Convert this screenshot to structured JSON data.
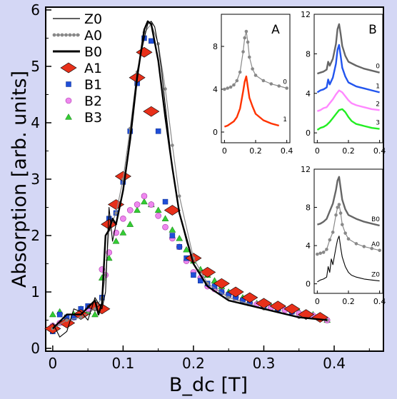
{
  "chart_data": {
    "type": "line",
    "xlabel": "B_dc [T]",
    "ylabel": "Absorption [arb. units]",
    "xlim": [
      -0.01,
      0.47
    ],
    "ylim": [
      -0.05,
      6.05
    ],
    "xticks": [
      "0",
      "0.1",
      "0.2",
      "0.3",
      "0.4"
    ],
    "yticks": [
      "0",
      "1",
      "2",
      "3",
      "4",
      "5",
      "6"
    ],
    "legend_position": "top-left",
    "series": [
      {
        "name": "Z0",
        "style": "thin-line",
        "color": "#000000",
        "x": [
          0.0,
          0.01,
          0.02,
          0.03,
          0.04,
          0.05,
          0.06,
          0.065,
          0.07,
          0.075,
          0.08,
          0.085,
          0.09,
          0.1,
          0.11,
          0.12,
          0.13,
          0.135,
          0.14,
          0.145,
          0.15,
          0.155,
          0.16,
          0.17,
          0.18,
          0.19,
          0.2,
          0.22,
          0.25,
          0.3,
          0.35,
          0.39
        ],
        "y": [
          0.45,
          0.2,
          0.3,
          0.7,
          0.65,
          0.5,
          0.9,
          0.8,
          0.7,
          1.0,
          2.5,
          1.9,
          2.2,
          2.8,
          3.8,
          4.9,
          5.5,
          5.75,
          5.8,
          5.7,
          5.35,
          4.9,
          4.3,
          3.2,
          2.4,
          1.9,
          1.5,
          1.1,
          0.85,
          0.7,
          0.55,
          0.5
        ]
      },
      {
        "name": "A0",
        "style": "dotted-line",
        "color": "#888888",
        "x": [
          0.0,
          0.02,
          0.04,
          0.06,
          0.07,
          0.075,
          0.08,
          0.09,
          0.1,
          0.11,
          0.12,
          0.13,
          0.14,
          0.15,
          0.16,
          0.17,
          0.18,
          0.2,
          0.22,
          0.25,
          0.3,
          0.35,
          0.39
        ],
        "y": [
          0.35,
          0.5,
          0.55,
          0.7,
          0.9,
          1.3,
          2.1,
          2.4,
          3.0,
          3.9,
          4.9,
          5.6,
          5.75,
          5.4,
          4.6,
          3.6,
          2.7,
          1.6,
          1.15,
          0.9,
          0.7,
          0.55,
          0.5
        ]
      },
      {
        "name": "B0",
        "style": "thick-line",
        "color": "#000000",
        "x": [
          0.0,
          0.02,
          0.04,
          0.06,
          0.065,
          0.07,
          0.075,
          0.08,
          0.085,
          0.09,
          0.1,
          0.11,
          0.12,
          0.13,
          0.135,
          0.14,
          0.15,
          0.16,
          0.17,
          0.18,
          0.2,
          0.22,
          0.25,
          0.3,
          0.35,
          0.39
        ],
        "y": [
          0.35,
          0.6,
          0.6,
          0.85,
          0.6,
          0.8,
          2.0,
          2.1,
          2.3,
          2.2,
          2.8,
          3.7,
          4.8,
          5.65,
          5.8,
          5.75,
          5.1,
          4.1,
          3.2,
          2.4,
          1.5,
          1.1,
          0.85,
          0.7,
          0.55,
          0.5
        ]
      },
      {
        "name": "A1",
        "style": "diamond",
        "color": "#e8301a",
        "x": [
          0.0,
          0.02,
          0.04,
          0.06,
          0.07,
          0.08,
          0.09,
          0.1,
          0.12,
          0.13,
          0.14,
          0.17,
          0.2,
          0.22,
          0.24,
          0.26,
          0.28,
          0.3,
          0.32,
          0.34,
          0.36,
          0.38
        ],
        "y": [
          0.35,
          0.45,
          0.6,
          0.75,
          0.7,
          2.2,
          2.55,
          3.05,
          4.8,
          5.25,
          4.2,
          2.45,
          1.6,
          1.35,
          1.15,
          1.0,
          0.9,
          0.8,
          0.75,
          0.7,
          0.6,
          0.55
        ]
      },
      {
        "name": "B1",
        "style": "square",
        "color": "#1f4ed8",
        "x": [
          0.0,
          0.01,
          0.02,
          0.03,
          0.04,
          0.05,
          0.06,
          0.07,
          0.08,
          0.09,
          0.1,
          0.11,
          0.12,
          0.13,
          0.14,
          0.15,
          0.16,
          0.17,
          0.18,
          0.19,
          0.2,
          0.21,
          0.22,
          0.23,
          0.24,
          0.25,
          0.26,
          0.27,
          0.28,
          0.3,
          0.32,
          0.34,
          0.36,
          0.38
        ],
        "y": [
          0.3,
          0.6,
          0.55,
          0.55,
          0.7,
          0.75,
          0.75,
          0.9,
          2.3,
          2.4,
          2.95,
          3.85,
          4.7,
          5.5,
          5.45,
          3.85,
          2.6,
          2.0,
          1.8,
          1.6,
          1.3,
          1.2,
          1.15,
          1.1,
          1.0,
          0.95,
          0.9,
          0.85,
          0.8,
          0.75,
          0.7,
          0.65,
          0.6,
          0.55
        ]
      },
      {
        "name": "B2",
        "style": "circle",
        "color": "#ee88ee",
        "x": [
          0.0,
          0.01,
          0.02,
          0.03,
          0.04,
          0.05,
          0.06,
          0.07,
          0.075,
          0.08,
          0.09,
          0.1,
          0.11,
          0.12,
          0.13,
          0.14,
          0.15,
          0.16,
          0.17,
          0.18,
          0.19,
          0.2,
          0.21,
          0.22,
          0.23,
          0.24,
          0.25,
          0.26,
          0.27,
          0.28,
          0.29,
          0.3,
          0.31,
          0.32,
          0.33,
          0.34,
          0.35,
          0.36,
          0.37,
          0.38,
          0.39
        ],
        "y": [
          0.4,
          0.45,
          0.5,
          0.55,
          0.65,
          0.7,
          0.75,
          1.4,
          1.3,
          1.7,
          2.05,
          2.3,
          2.45,
          2.55,
          2.7,
          2.55,
          2.35,
          2.15,
          1.95,
          1.8,
          1.55,
          1.35,
          1.25,
          1.1,
          1.05,
          1.0,
          0.95,
          0.9,
          0.85,
          0.8,
          0.78,
          0.75,
          0.72,
          0.7,
          0.68,
          0.65,
          0.62,
          0.6,
          0.58,
          0.55,
          0.5
        ]
      },
      {
        "name": "B3",
        "style": "triangle",
        "color": "#33cc33",
        "x": [
          0.0,
          0.01,
          0.02,
          0.03,
          0.04,
          0.05,
          0.06,
          0.07,
          0.08,
          0.09,
          0.1,
          0.11,
          0.12,
          0.13,
          0.14,
          0.15,
          0.16,
          0.17,
          0.18,
          0.19,
          0.2,
          0.21,
          0.22,
          0.23,
          0.24,
          0.25,
          0.26,
          0.27,
          0.28,
          0.29,
          0.3,
          0.31,
          0.32,
          0.33,
          0.34,
          0.35,
          0.36,
          0.37,
          0.38,
          0.39
        ],
        "y": [
          0.6,
          0.65,
          0.45,
          0.6,
          0.7,
          0.65,
          0.6,
          1.25,
          1.6,
          1.9,
          2.05,
          2.2,
          2.45,
          2.6,
          2.55,
          2.45,
          2.3,
          2.1,
          1.95,
          1.75,
          1.55,
          1.4,
          1.3,
          1.2,
          1.1,
          1.0,
          0.95,
          0.9,
          0.85,
          0.8,
          0.78,
          0.75,
          0.72,
          0.7,
          0.68,
          0.65,
          0.62,
          0.6,
          0.55,
          0.5
        ]
      }
    ],
    "insets": [
      {
        "label": "A",
        "xlim": [
          -0.02,
          0.42
        ],
        "ylim": [
          -1,
          11
        ],
        "xticks": [
          "0",
          "0.2",
          "0.4"
        ],
        "yticks": [
          "0",
          "4",
          "8"
        ],
        "series": [
          {
            "name": "0",
            "style": "dotted-line",
            "color": "#888888",
            "x": [
              0.0,
              0.02,
              0.04,
              0.06,
              0.08,
              0.1,
              0.12,
              0.13,
              0.14,
              0.15,
              0.16,
              0.18,
              0.2,
              0.25,
              0.3,
              0.35,
              0.4
            ],
            "y": [
              4.0,
              4.1,
              4.2,
              4.4,
              4.8,
              5.6,
              7.5,
              8.8,
              9.4,
              8.4,
              7.0,
              5.9,
              5.3,
              4.8,
              4.5,
              4.3,
              4.1
            ]
          },
          {
            "name": "1",
            "style": "thick-line",
            "color": "#ff3300",
            "x": [
              0.0,
              0.02,
              0.04,
              0.06,
              0.08,
              0.1,
              0.12,
              0.13,
              0.14,
              0.15,
              0.16,
              0.18,
              0.2,
              0.25,
              0.3,
              0.35
            ],
            "y": [
              0.5,
              0.6,
              0.8,
              1.0,
              1.4,
              2.2,
              3.8,
              4.7,
              5.2,
              4.2,
              3.2,
              2.4,
              1.7,
              1.1,
              0.8,
              0.6
            ]
          }
        ]
      },
      {
        "label": "B",
        "xlim": [
          -0.02,
          0.42
        ],
        "ylim": [
          -1,
          12
        ],
        "xticks": [
          "0",
          "0.2",
          "0.4"
        ],
        "yticks": [
          "0",
          "4",
          "8",
          "12"
        ],
        "series": [
          {
            "name": "0",
            "style": "thick-line",
            "color": "#666666",
            "x": [
              0.0,
              0.02,
              0.04,
              0.06,
              0.07,
              0.08,
              0.1,
              0.12,
              0.13,
              0.14,
              0.15,
              0.16,
              0.18,
              0.2,
              0.25,
              0.3,
              0.35,
              0.4
            ],
            "y": [
              6.0,
              6.1,
              6.2,
              6.4,
              7.2,
              6.8,
              7.5,
              9.0,
              10.5,
              11.0,
              10.0,
              8.8,
              7.8,
              7.2,
              6.8,
              6.5,
              6.3,
              6.1
            ]
          },
          {
            "name": "1",
            "style": "thick-line",
            "color": "#2255ee",
            "x": [
              0.0,
              0.02,
              0.04,
              0.06,
              0.07,
              0.08,
              0.1,
              0.12,
              0.13,
              0.14,
              0.15,
              0.16,
              0.18,
              0.2,
              0.25,
              0.3,
              0.35,
              0.4
            ],
            "y": [
              4.1,
              4.3,
              4.4,
              4.6,
              5.4,
              4.9,
              5.6,
              7.0,
              8.4,
              8.9,
              7.8,
              6.6,
              5.7,
              5.1,
              4.7,
              4.5,
              4.3,
              4.1
            ]
          },
          {
            "name": "2",
            "style": "thick-line",
            "color": "#ff88ff",
            "x": [
              0.0,
              0.02,
              0.04,
              0.06,
              0.08,
              0.1,
              0.12,
              0.14,
              0.16,
              0.18,
              0.2,
              0.22,
              0.25,
              0.3,
              0.35,
              0.4
            ],
            "y": [
              2.2,
              2.3,
              2.5,
              2.6,
              3.0,
              3.4,
              3.9,
              4.3,
              4.1,
              3.7,
              3.3,
              3.0,
              2.8,
              2.6,
              2.4,
              2.3
            ]
          },
          {
            "name": "3",
            "style": "thick-line",
            "color": "#22ee22",
            "x": [
              0.0,
              0.02,
              0.04,
              0.06,
              0.08,
              0.1,
              0.12,
              0.14,
              0.16,
              0.18,
              0.2,
              0.22,
              0.25,
              0.3,
              0.35,
              0.4
            ],
            "y": [
              0.3,
              0.5,
              0.6,
              0.8,
              1.1,
              1.5,
              1.9,
              2.3,
              2.4,
              2.1,
              1.6,
              1.2,
              0.9,
              0.7,
              0.5,
              0.4
            ]
          }
        ]
      },
      {
        "label": "",
        "xlim": [
          -0.02,
          0.42
        ],
        "ylim": [
          -1,
          12
        ],
        "xticks": [
          "0",
          "0.2",
          "0.4"
        ],
        "yticks": [
          "0",
          "4",
          "8",
          "12"
        ],
        "series": [
          {
            "name": "B0",
            "style": "thick-line",
            "color": "#666666",
            "x": [
              0.0,
              0.02,
              0.04,
              0.06,
              0.08,
              0.1,
              0.12,
              0.13,
              0.14,
              0.15,
              0.16,
              0.18,
              0.2,
              0.25,
              0.3,
              0.35,
              0.4
            ],
            "y": [
              6.2,
              6.3,
              6.5,
              6.8,
              7.6,
              8.4,
              9.8,
              10.8,
              11.2,
              10.0,
              8.8,
              7.8,
              7.2,
              6.8,
              6.5,
              6.3,
              6.1
            ]
          },
          {
            "name": "A0",
            "style": "dotted-line",
            "color": "#888888",
            "x": [
              0.0,
              0.02,
              0.04,
              0.06,
              0.08,
              0.1,
              0.12,
              0.13,
              0.14,
              0.15,
              0.16,
              0.18,
              0.2,
              0.25,
              0.3,
              0.35,
              0.4
            ],
            "y": [
              3.1,
              3.2,
              3.3,
              3.6,
              4.6,
              5.4,
              7.2,
              8.0,
              8.3,
              7.4,
              6.2,
              5.3,
              4.7,
              4.2,
              3.9,
              3.7,
              3.5
            ]
          },
          {
            "name": "Z0",
            "style": "thin-line",
            "color": "#000000",
            "x": [
              0.0,
              0.02,
              0.04,
              0.06,
              0.07,
              0.08,
              0.09,
              0.1,
              0.12,
              0.13,
              0.14,
              0.15,
              0.16,
              0.18,
              0.2,
              0.22,
              0.25,
              0.3,
              0.35,
              0.4
            ],
            "y": [
              0.2,
              0.4,
              0.5,
              0.7,
              1.8,
              1.2,
              2.6,
              2.0,
              3.8,
              4.6,
              5.0,
              3.8,
              2.8,
              1.8,
              1.2,
              0.9,
              0.7,
              0.5,
              0.4,
              0.3
            ]
          }
        ]
      }
    ]
  }
}
